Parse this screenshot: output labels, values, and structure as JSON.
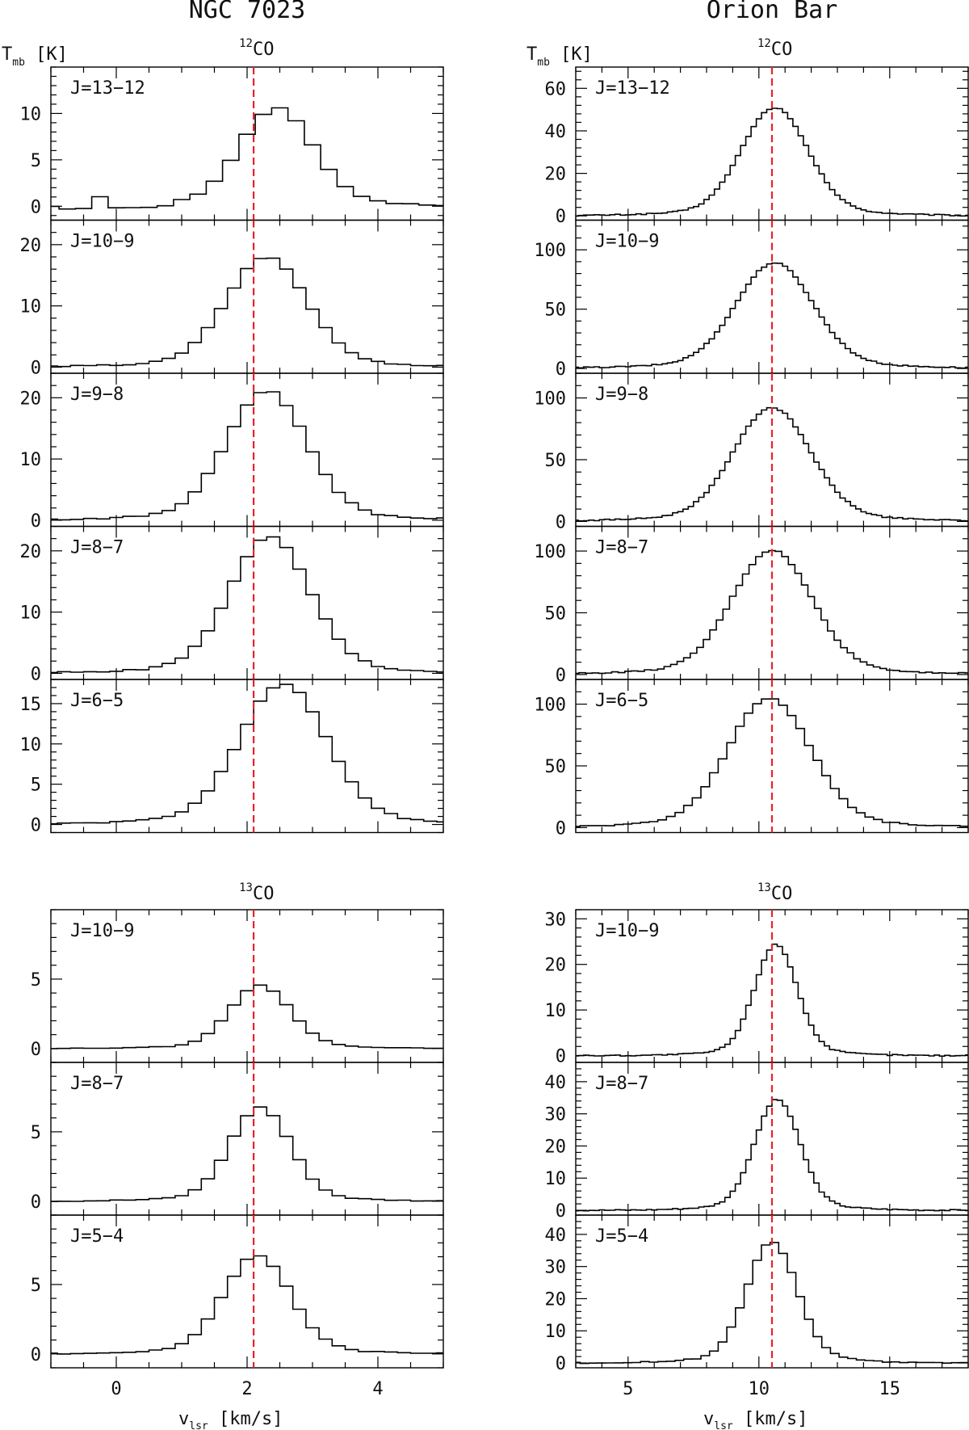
{
  "chart_data": [
    {
      "type": "line",
      "title": "NGC 7023",
      "ylabel_main": "T",
      "ylabel_sub": "mb",
      "ylabel_unit": "[K]",
      "xlabel_main": "v",
      "xlabel_sub": "lsr",
      "xlabel_unit": "[km/s]",
      "xlim": [
        -1.0,
        5.0
      ],
      "xticks": [
        0,
        2,
        4
      ],
      "xticklabels": [
        "0",
        "2",
        "4"
      ],
      "ref_velocity": 2.1,
      "groups": [
        {
          "isotope_mass": "12",
          "isotope_species": "CO",
          "panels": [
            {
              "label": "J=13−12",
              "ylim": [
                -1.5,
                15
              ],
              "yticks": [
                0,
                5,
                10
              ],
              "yticklabels": [
                "0",
                "5",
                "10"
              ],
              "peak": 10.0,
              "center": 2.45,
              "sigma": 0.55,
              "step": 0.25,
              "offset_wiggle": true
            },
            {
              "label": "J=10−9",
              "ylim": [
                -1,
                24
              ],
              "yticks": [
                0,
                10,
                20
              ],
              "yticklabels": [
                "0",
                "10",
                "20"
              ],
              "peak": 17.0,
              "center": 2.3,
              "sigma": 0.6,
              "step": 0.2
            },
            {
              "label": "J=9−8",
              "ylim": [
                -1,
                24
              ],
              "yticks": [
                0,
                10,
                20
              ],
              "yticklabels": [
                "0",
                "10",
                "20"
              ],
              "peak": 20.0,
              "center": 2.3,
              "sigma": 0.6,
              "step": 0.2
            },
            {
              "label": "J=8−7",
              "ylim": [
                -1,
                24
              ],
              "yticks": [
                0,
                10,
                20
              ],
              "yticklabels": [
                "0",
                "10",
                "20"
              ],
              "peak": 21.0,
              "center": 2.35,
              "sigma": 0.6,
              "step": 0.2
            },
            {
              "label": "J=6−5",
              "ylim": [
                -1,
                18
              ],
              "yticks": [
                0,
                5,
                10,
                15
              ],
              "yticklabels": [
                "0",
                "5",
                "10",
                "15"
              ],
              "peak": 16.5,
              "center": 2.55,
              "sigma": 0.65,
              "step": 0.2
            }
          ]
        },
        {
          "isotope_mass": "13",
          "isotope_species": "CO",
          "panels": [
            {
              "label": "J=10−9",
              "ylim": [
                -1,
                10
              ],
              "yticks": [
                0,
                5
              ],
              "yticklabels": [
                "0",
                "5"
              ],
              "peak": 4.3,
              "center": 2.2,
              "sigma": 0.45,
              "step": 0.2
            },
            {
              "label": "J=8−7",
              "ylim": [
                -1,
                10
              ],
              "yticks": [
                0,
                5
              ],
              "yticklabels": [
                "0",
                "5"
              ],
              "peak": 6.4,
              "center": 2.2,
              "sigma": 0.45,
              "step": 0.2
            },
            {
              "label": "J=5−4",
              "ylim": [
                -1,
                10
              ],
              "yticks": [
                0,
                5
              ],
              "yticklabels": [
                "0",
                "5"
              ],
              "peak": 6.7,
              "center": 2.15,
              "sigma": 0.5,
              "step": 0.2
            }
          ]
        }
      ]
    },
    {
      "type": "line",
      "title": "Orion Bar",
      "ylabel_main": "T",
      "ylabel_sub": "mb",
      "ylabel_unit": "[K]",
      "xlabel_main": "v",
      "xlabel_sub": "lsr",
      "xlabel_unit": "[km/s]",
      "xlim": [
        3.0,
        18.0
      ],
      "xticks": [
        5,
        10,
        15
      ],
      "xticklabels": [
        "5",
        "10",
        "15"
      ],
      "ref_velocity": 10.5,
      "groups": [
        {
          "isotope_mass": "12",
          "isotope_species": "CO",
          "panels": [
            {
              "label": "J=13−12",
              "ylim": [
                -2,
                70
              ],
              "yticks": [
                0,
                20,
                40,
                60
              ],
              "yticklabels": [
                "0",
                "20",
                "40",
                "60"
              ],
              "peak": 48,
              "center": 10.6,
              "sigma": 1.25,
              "step": 0.2
            },
            {
              "label": "J=10−9",
              "ylim": [
                -4,
                125
              ],
              "yticks": [
                0,
                50,
                100
              ],
              "yticklabels": [
                "0",
                "50",
                "100"
              ],
              "peak": 84,
              "center": 10.6,
              "sigma": 1.45,
              "step": 0.2
            },
            {
              "label": "J=9−8",
              "ylim": [
                -4,
                120
              ],
              "yticks": [
                0,
                50,
                100
              ],
              "yticklabels": [
                "0",
                "50",
                "100"
              ],
              "peak": 87,
              "center": 10.5,
              "sigma": 1.45,
              "step": 0.2
            },
            {
              "label": "J=8−7",
              "ylim": [
                -4,
                120
              ],
              "yticks": [
                0,
                50,
                100
              ],
              "yticklabels": [
                "0",
                "50",
                "100"
              ],
              "peak": 95,
              "center": 10.5,
              "sigma": 1.5,
              "step": 0.25
            },
            {
              "label": "J=6−5",
              "ylim": [
                -4,
                120
              ],
              "yticks": [
                0,
                50,
                100
              ],
              "yticklabels": [
                "0",
                "50",
                "100"
              ],
              "peak": 99,
              "center": 10.4,
              "sigma": 1.55,
              "step": 0.33
            }
          ]
        },
        {
          "isotope_mass": "13",
          "isotope_species": "CO",
          "panels": [
            {
              "label": "J=10−9",
              "ylim": [
                -1.5,
                32
              ],
              "yticks": [
                0,
                10,
                20,
                30
              ],
              "yticklabels": [
                "0",
                "10",
                "20",
                "30"
              ],
              "peak": 23,
              "center": 10.65,
              "sigma": 0.8,
              "step": 0.2
            },
            {
              "label": "J=8−7",
              "ylim": [
                -1.5,
                46
              ],
              "yticks": [
                0,
                10,
                20,
                30,
                40
              ],
              "yticklabels": [
                "0",
                "10",
                "20",
                "30",
                "40"
              ],
              "peak": 32.5,
              "center": 10.7,
              "sigma": 0.85,
              "step": 0.2
            },
            {
              "label": "J=5−4",
              "ylim": [
                -1.5,
                46
              ],
              "yticks": [
                0,
                10,
                20,
                30,
                40
              ],
              "yticklabels": [
                "0",
                "10",
                "20",
                "30",
                "40"
              ],
              "peak": 35.5,
              "center": 10.5,
              "sigma": 0.95,
              "step": 0.33
            }
          ]
        }
      ]
    }
  ]
}
